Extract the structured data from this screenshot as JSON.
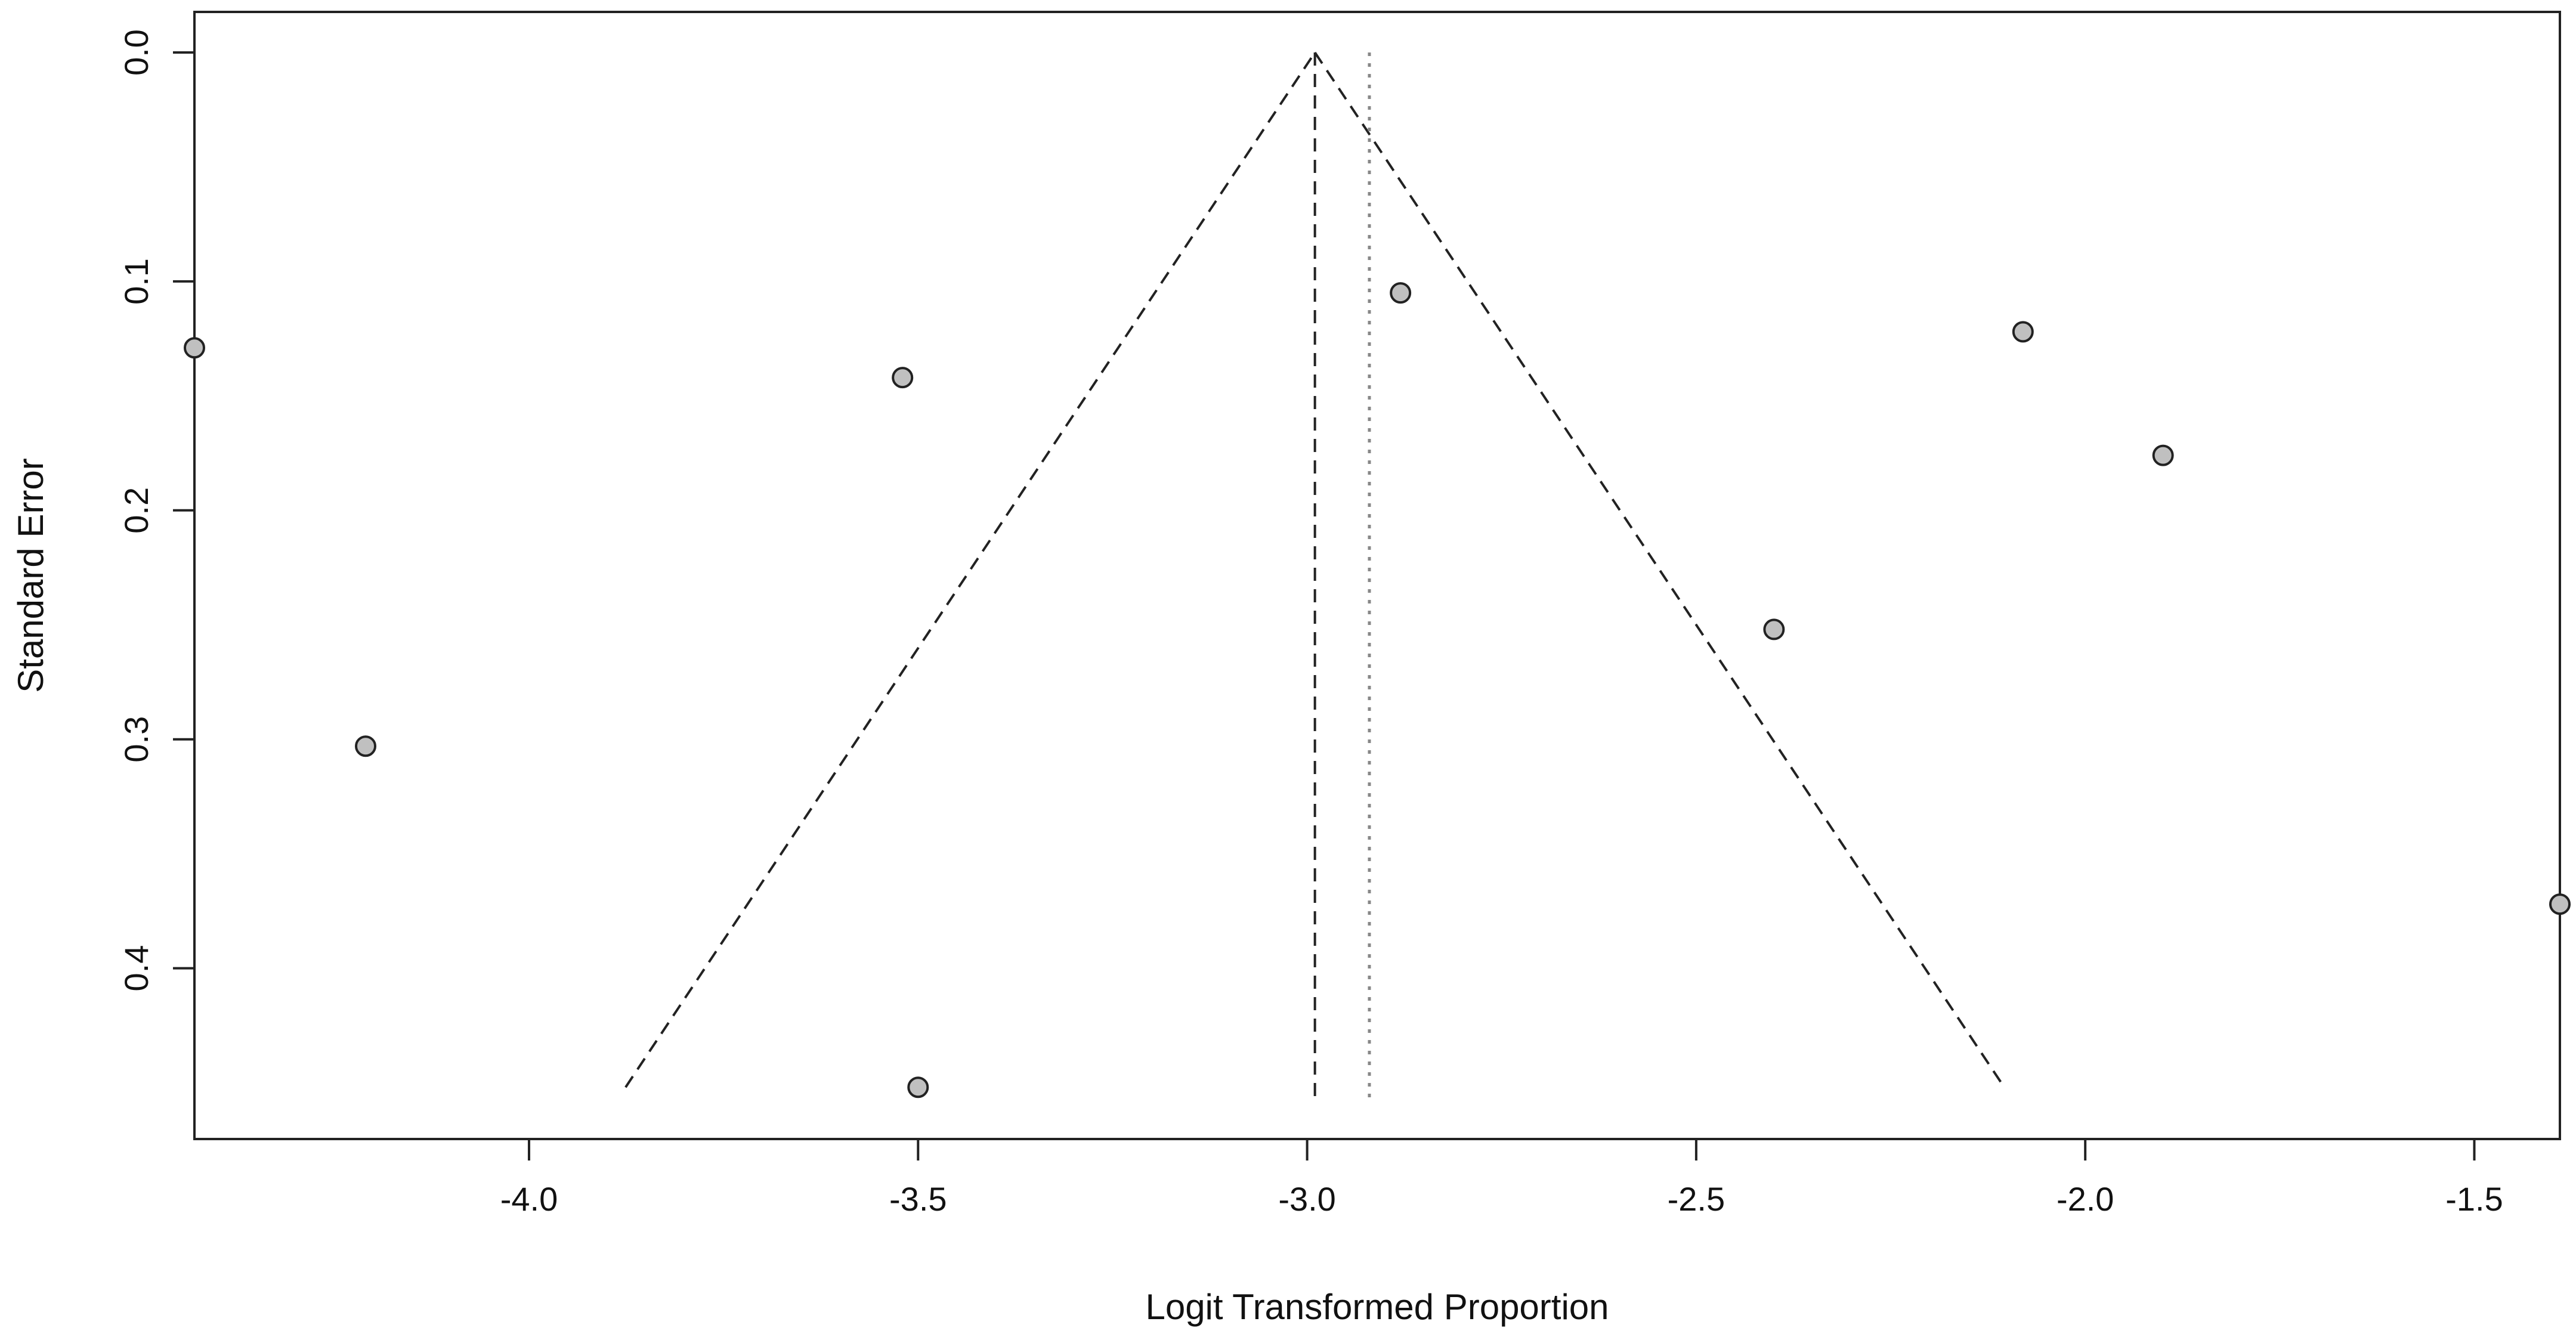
{
  "chart_data": {
    "type": "scatter",
    "title": "",
    "xlabel": "Logit Transformed Proportion",
    "ylabel": "Standard Error",
    "xlim": [
      -4.43,
      -1.39
    ],
    "ylim": [
      0,
      0.472
    ],
    "y_reversed": true,
    "grid": false,
    "legend": "none",
    "x_ticks": [
      {
        "value": -4.0,
        "label": "-4.0"
      },
      {
        "value": -3.5,
        "label": "-3.5"
      },
      {
        "value": -3.0,
        "label": "-3.0"
      },
      {
        "value": -2.5,
        "label": "-2.5"
      },
      {
        "value": -2.0,
        "label": "-2.0"
      },
      {
        "value": -1.5,
        "label": "-1.5"
      }
    ],
    "y_ticks": [
      {
        "value": 0.0,
        "label": "0.0"
      },
      {
        "value": 0.1,
        "label": "0.1"
      },
      {
        "value": 0.2,
        "label": "0.2"
      },
      {
        "value": 0.3,
        "label": "0.3"
      },
      {
        "value": 0.4,
        "label": "0.4"
      }
    ],
    "points": [
      {
        "x": -4.43,
        "y": 0.129
      },
      {
        "x": -4.21,
        "y": 0.303
      },
      {
        "x": -3.52,
        "y": 0.142
      },
      {
        "x": -3.5,
        "y": 0.452
      },
      {
        "x": -2.88,
        "y": 0.105
      },
      {
        "x": -2.4,
        "y": 0.252
      },
      {
        "x": -2.08,
        "y": 0.122
      },
      {
        "x": -1.9,
        "y": 0.176
      },
      {
        "x": -1.39,
        "y": 0.372
      }
    ],
    "pooled_estimate_fixed": -2.99,
    "pooled_estimate_random": -2.92,
    "funnel_max_se": 0.452,
    "colors": {
      "point_fill": "#c0c0c0",
      "point_stroke": "#222222",
      "lines": "#222222",
      "random_line": "#888888"
    }
  }
}
